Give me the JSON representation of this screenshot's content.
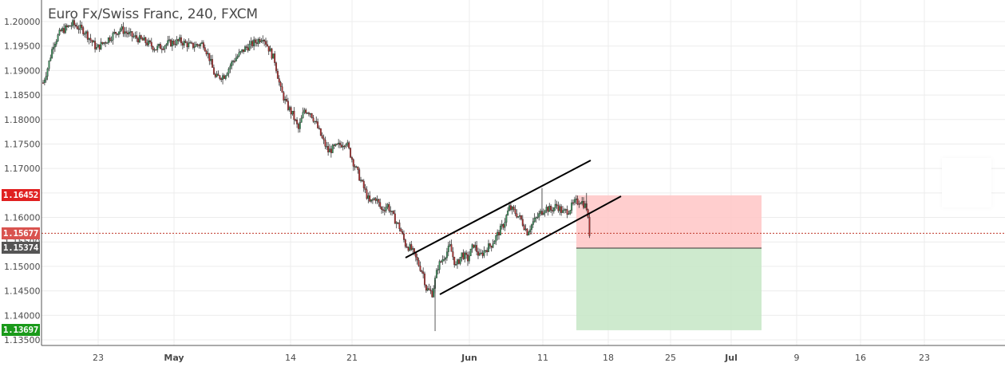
{
  "title": "Euro Fx/Swiss Franc, 240, FXCM",
  "colors": {
    "up_candle": "#3a8f5a",
    "down_candle": "#b03030",
    "grid": "#ececec",
    "channel_line": "#000000",
    "stop_zone": "#ffc9c9",
    "target_zone": "#c9e8c9",
    "current_price_line": "#c0392b",
    "tag_stop": "#e02020",
    "tag_current": "#d9534f",
    "tag_entry": "#555555",
    "tag_target": "#1a9a1a"
  },
  "price_tags": {
    "stop": "1.16452",
    "current": "1.15677",
    "entry": "1.15374",
    "target": "1.13697"
  },
  "chart_data": {
    "type": "candlestick",
    "title": "Euro Fx/Swiss Franc, 240, FXCM",
    "timeframe": "240",
    "y_tick_labels": [
      "1.20000",
      "1.19500",
      "1.19000",
      "1.18500",
      "1.18000",
      "1.17500",
      "1.17000",
      "1.16500",
      "1.16000",
      "1.15500",
      "1.15000",
      "1.14500",
      "1.14000",
      "1.13500"
    ],
    "x_tick_labels": [
      "23",
      "May",
      "14",
      "21",
      "Jun",
      "11",
      "18",
      "25",
      "Jul",
      "9",
      "16",
      "23"
    ],
    "ylim": [
      1.1335,
      1.2018
    ],
    "grid": true,
    "close_path": [
      [
        0,
        1.1875
      ],
      [
        3,
        1.1905
      ],
      [
        7,
        1.1955
      ],
      [
        12,
        1.198
      ],
      [
        20,
        1.1995
      ],
      [
        28,
        1.198
      ],
      [
        36,
        1.1945
      ],
      [
        44,
        1.1965
      ],
      [
        52,
        1.1985
      ],
      [
        60,
        1.197
      ],
      [
        68,
        1.196
      ],
      [
        76,
        1.1945
      ],
      [
        84,
        1.1955
      ],
      [
        92,
        1.196
      ],
      [
        100,
        1.195
      ],
      [
        108,
        1.1955
      ],
      [
        112,
        1.1925
      ],
      [
        116,
        1.1885
      ],
      [
        122,
        1.189
      ],
      [
        128,
        1.192
      ],
      [
        136,
        1.1945
      ],
      [
        144,
        1.196
      ],
      [
        148,
        1.197
      ],
      [
        152,
        1.1945
      ],
      [
        156,
        1.192
      ],
      [
        160,
        1.186
      ],
      [
        164,
        1.183
      ],
      [
        168,
        1.181
      ],
      [
        172,
        1.178
      ],
      [
        176,
        1.182
      ],
      [
        180,
        1.1815
      ],
      [
        184,
        1.179
      ],
      [
        188,
        1.176
      ],
      [
        192,
        1.1735
      ],
      [
        198,
        1.1745
      ],
      [
        204,
        1.1755
      ],
      [
        208,
        1.172
      ],
      [
        212,
        1.169
      ],
      [
        216,
        1.166
      ],
      [
        220,
        1.163
      ],
      [
        224,
        1.164
      ],
      [
        228,
        1.1615
      ],
      [
        232,
        1.1625
      ],
      [
        236,
        1.16
      ],
      [
        240,
        1.158
      ],
      [
        244,
        1.1545
      ],
      [
        248,
        1.1535
      ],
      [
        252,
        1.151
      ],
      [
        256,
        1.1485
      ],
      [
        258,
        1.1455
      ],
      [
        262,
        1.1445
      ],
      [
        266,
        1.15
      ],
      [
        270,
        1.152
      ],
      [
        274,
        1.154
      ],
      [
        278,
        1.15
      ],
      [
        282,
        1.1525
      ],
      [
        286,
        1.1515
      ],
      [
        290,
        1.1545
      ],
      [
        294,
        1.152
      ],
      [
        298,
        1.1535
      ],
      [
        302,
        1.1545
      ],
      [
        306,
        1.1565
      ],
      [
        310,
        1.1585
      ],
      [
        314,
        1.162
      ],
      [
        318,
        1.161
      ],
      [
        322,
        1.1595
      ],
      [
        326,
        1.157
      ],
      [
        330,
        1.159
      ],
      [
        334,
        1.1605
      ],
      [
        338,
        1.162
      ],
      [
        342,
        1.1615
      ],
      [
        346,
        1.1625
      ],
      [
        350,
        1.161
      ],
      [
        354,
        1.1615
      ],
      [
        358,
        1.163
      ],
      [
        362,
        1.1635
      ],
      [
        366,
        1.162
      ],
      [
        368,
        1.1568
      ]
    ],
    "channel": {
      "upper": {
        "from": [
          "2018-05-26",
          1.1525
        ],
        "to": [
          "2018-06-16",
          1.1715
        ]
      },
      "lower": {
        "from": [
          "2018-05-29",
          1.1445
        ],
        "to": [
          "2018-06-19",
          1.164
        ]
      }
    },
    "position": {
      "type": "short",
      "entry": 1.15374,
      "stop": 1.16452,
      "target": 1.13697,
      "current": 1.15677
    }
  }
}
